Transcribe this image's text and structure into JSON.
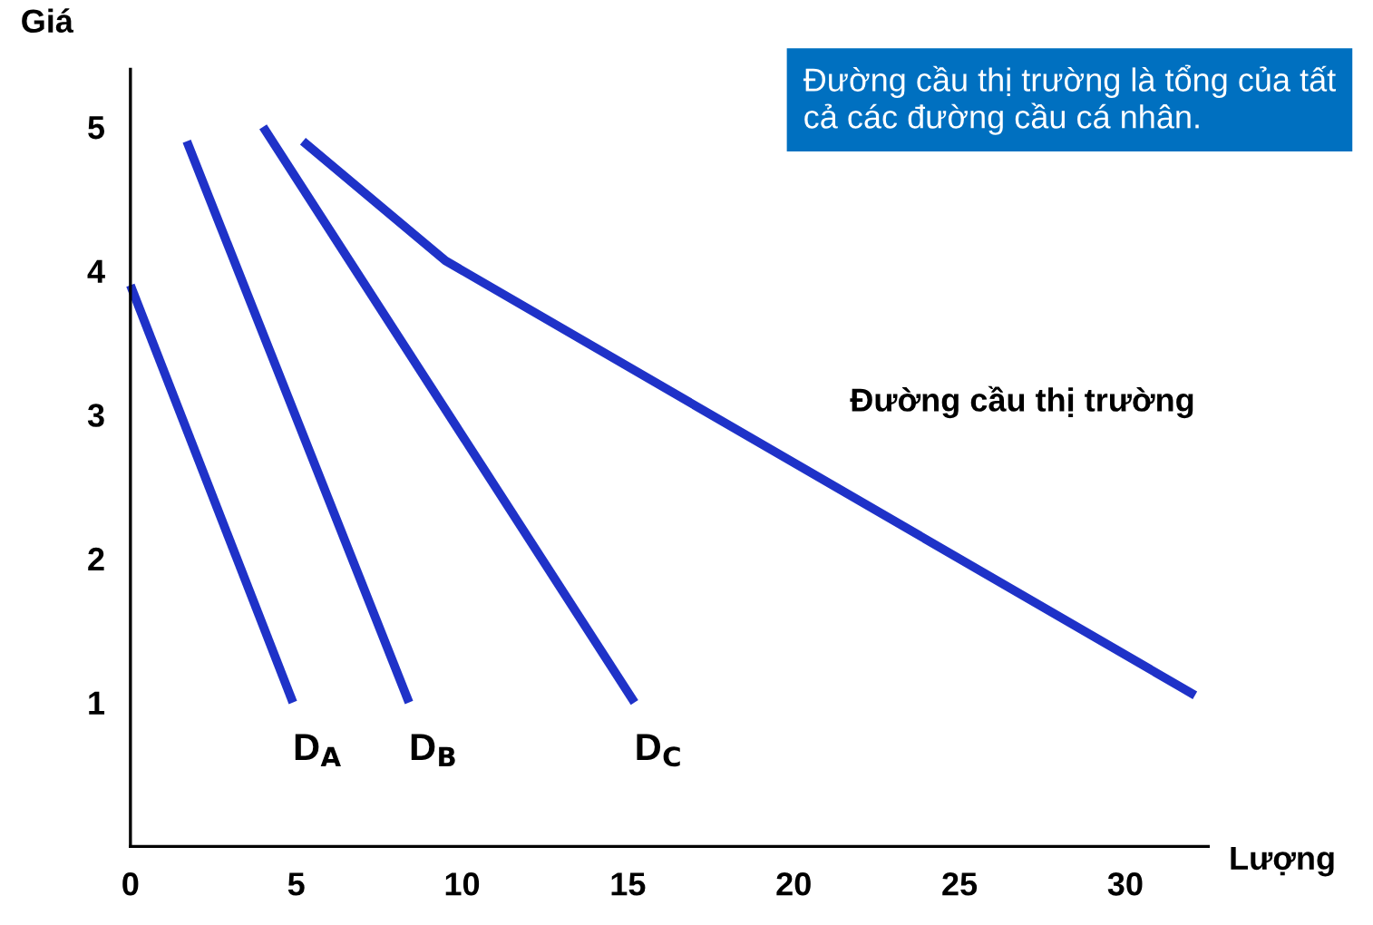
{
  "chart_data": {
    "type": "line",
    "xlabel": "Lượng",
    "ylabel": "Giá",
    "xlim": [
      0,
      32.5
    ],
    "ylim": [
      0,
      5.4
    ],
    "xticks": [
      0,
      5,
      10,
      15,
      20,
      25,
      30
    ],
    "yticks": [
      1,
      2,
      3,
      4,
      5
    ],
    "grid": false,
    "legend": false,
    "marker": "none",
    "line_style": "solid",
    "series": [
      {
        "name": "D$_{A}$",
        "color": "#1f32c8",
        "x": [
          0,
          4.9
        ],
        "values": [
          3.9,
          1.0
        ]
      },
      {
        "name": "D$_{B}$",
        "color": "#1f32c8",
        "x": [
          1.7,
          8.4
        ],
        "values": [
          4.9,
          1.0
        ]
      },
      {
        "name": "D$_{C}$",
        "color": "#1f32c8",
        "x": [
          4.0,
          15.2
        ],
        "values": [
          5.0,
          1.0
        ]
      },
      {
        "name": "Đường cầu thị trường",
        "color": "#1f32c8",
        "x": [
          5.2,
          9.5,
          32.1
        ],
        "values": [
          4.9,
          4.07,
          1.05
        ]
      }
    ],
    "annotations": [
      "Đường cầu thị trường là tổng của tất cả các đường cầu cá nhân."
    ]
  }
}
